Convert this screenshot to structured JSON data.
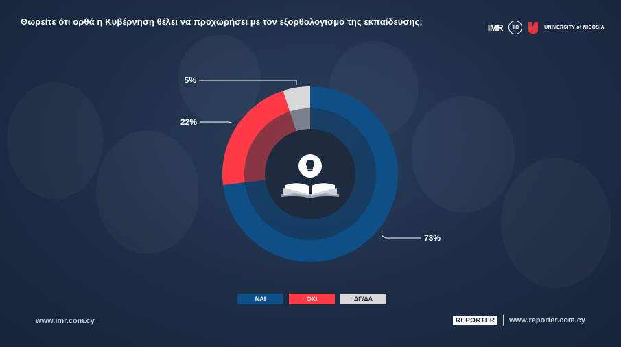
{
  "header": {
    "title": "Θωρείτε ότι ορθά η Κυβέρνηση θέλει να προχωρήσει με τον εξορθολογισμό της εκπαίδευσης;",
    "logo_imr": "IMR",
    "logo_seal": "10",
    "logo_university": "UNIVERSITY of NICOSIA"
  },
  "chart_data": {
    "type": "pie",
    "style": "donut",
    "title": "Θωρείτε ότι ορθά η Κυβέρνηση θέλει να προχωρήσει με τον εξορθολογισμό της εκπαίδευσης;",
    "categories": [
      "ΝΑΙ",
      "ΟΧΙ",
      "ΔΓ/ΔΑ"
    ],
    "values": [
      73,
      22,
      5
    ],
    "labels": [
      "73%",
      "22%",
      "5%"
    ],
    "colors": [
      "#0d4f86",
      "#ff3b48",
      "#d9d9d9"
    ],
    "legend_position": "bottom"
  },
  "center_icon": "lightbulb-book-icon",
  "footer": {
    "left_url": "www.imr.com.cy",
    "reporter_logo": "REPORTER",
    "right_url": "www.reporter.com.cy"
  }
}
